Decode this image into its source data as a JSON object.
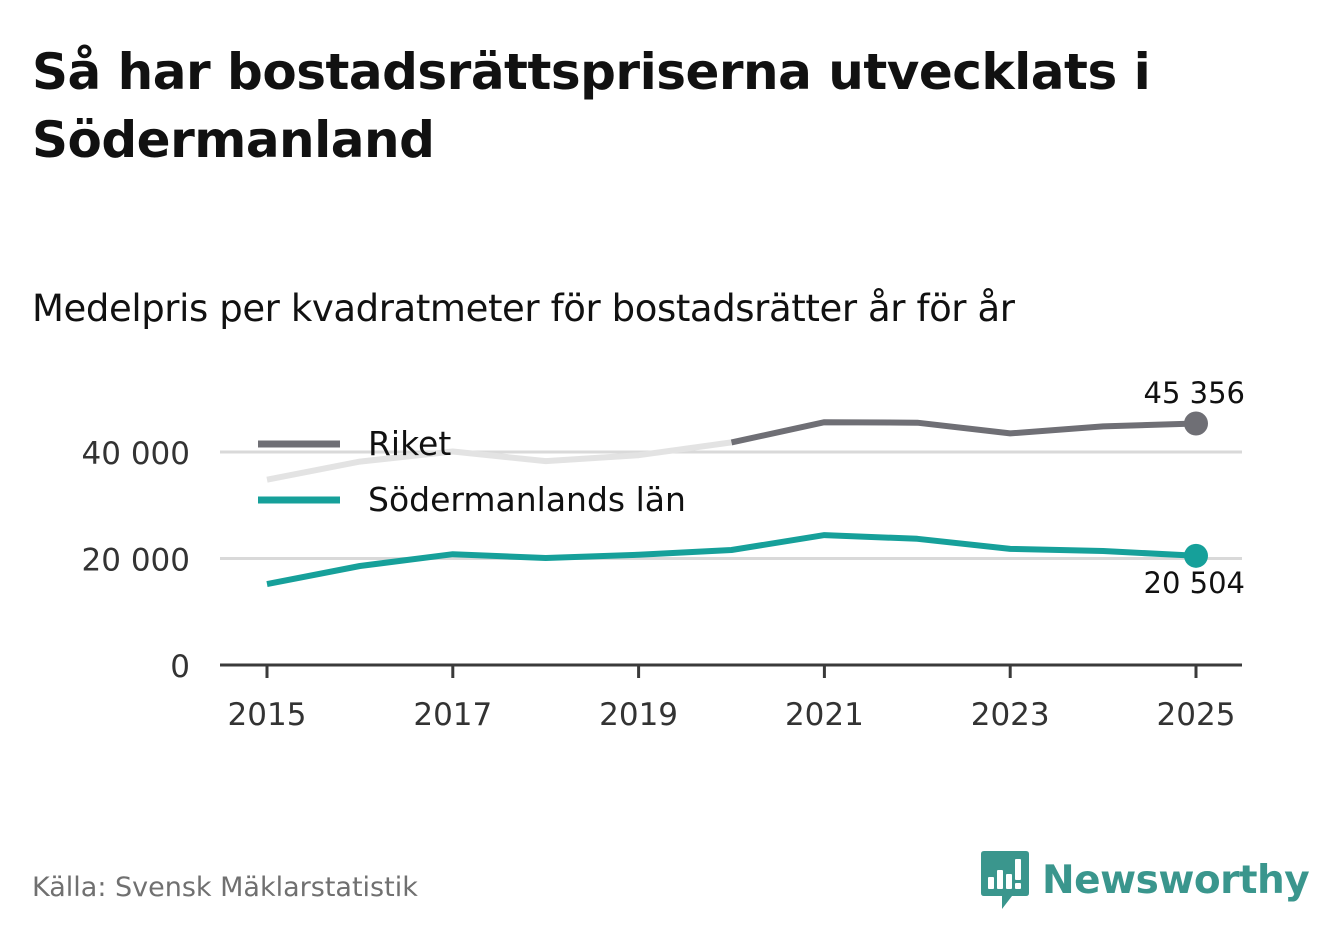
{
  "header": {
    "title": "Så har bostadsrättspriserna utvecklats i Södermanland",
    "subtitle": "Medelpris per kvadratmeter för bostadsrätter år för år"
  },
  "colors": {
    "riket": "#6f6f75",
    "riket_faded": "#e3e3e3",
    "sodermanland": "#16a09a",
    "grid": "#d9d9d9",
    "axis": "#3a3a3a",
    "brand": "#3a968d"
  },
  "chart_data": {
    "type": "line",
    "title": "Medelpris per kvadratmeter för bostadsrätter år för år",
    "xlabel": "",
    "ylabel": "",
    "x": [
      2015,
      2016,
      2017,
      2018,
      2019,
      2020,
      2021,
      2022,
      2023,
      2024,
      2025
    ],
    "xticks": [
      2015,
      2017,
      2019,
      2021,
      2023,
      2025
    ],
    "ylim": [
      0,
      45000
    ],
    "yticks": [
      {
        "value": 0,
        "label": "0"
      },
      {
        "value": 20000,
        "label": "20 000"
      },
      {
        "value": 40000,
        "label": "40 000"
      }
    ],
    "grid": true,
    "legend_position": "top-left",
    "series": [
      {
        "name": "Riket",
        "color_key": "riket",
        "values": [
          34800,
          38200,
          40100,
          38300,
          39400,
          41800,
          45600,
          45500,
          43500,
          44800,
          45356
        ],
        "end_label": "45 356"
      },
      {
        "name": "Södermanlands län",
        "color_key": "sodermanland",
        "values": [
          15200,
          18600,
          20800,
          20100,
          20700,
          21600,
          24400,
          23700,
          21800,
          21400,
          20504
        ],
        "end_label": "20 504"
      }
    ]
  },
  "footer": {
    "source": "Källa: Svensk Mäklarstatistik",
    "brand": "Newsworthy",
    "brand_icon": "newsworthy-logo-icon"
  }
}
